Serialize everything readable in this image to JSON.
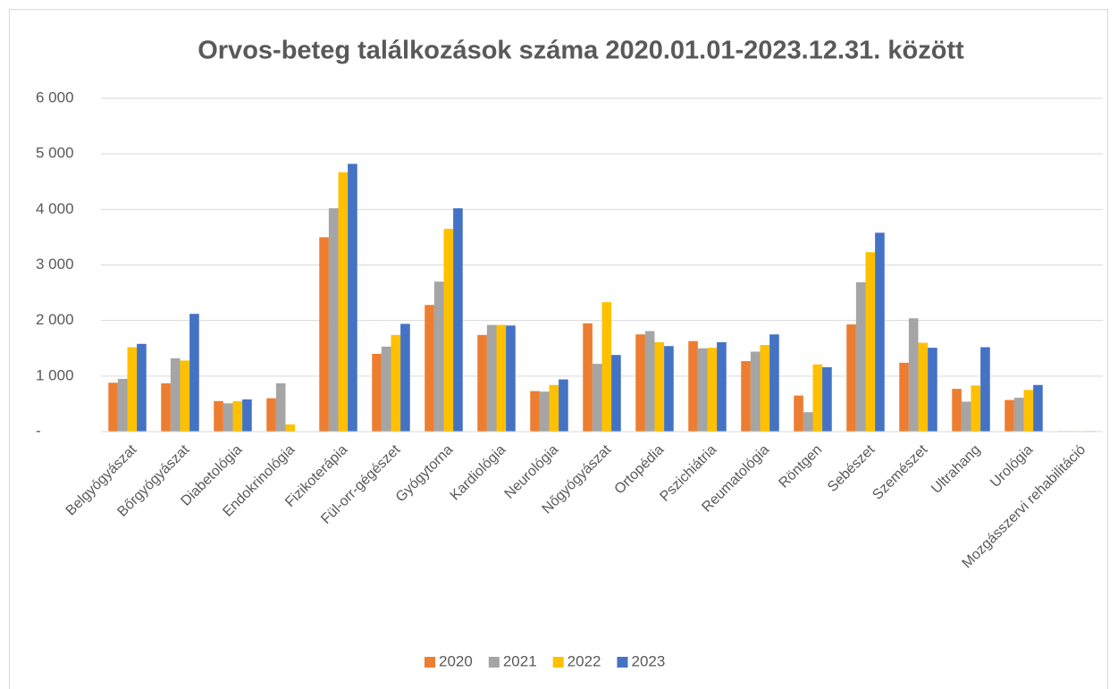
{
  "chart_data": {
    "type": "bar",
    "title": "Orvos-beteg találkozások száma 2020.01.01-2023.12.31. között",
    "categories": [
      "Belgyógyászat",
      "Bőrgyógyászat",
      "Diabetológia",
      "Endokrinológia",
      "Fizikoterápia",
      "Fül-orr-gégészet",
      "Gyógytorna",
      "Kardiológia",
      "Neurológia",
      "Nőgyógyászat",
      "Ortopédia",
      "Pszichiátria",
      "Reumatológia",
      "Röntgen",
      "Sebészet",
      "Szemészet",
      "Ultrahang",
      "Urológia",
      "Mozgásszervi rehabilitáció"
    ],
    "series": [
      {
        "name": "2020",
        "color": "#ed7d31",
        "values": [
          880,
          870,
          550,
          600,
          3500,
          1400,
          2280,
          1740,
          730,
          1950,
          1750,
          1630,
          1270,
          650,
          1930,
          1240,
          770,
          570,
          10
        ]
      },
      {
        "name": "2021",
        "color": "#a5a5a5",
        "values": [
          950,
          1320,
          510,
          870,
          4020,
          1530,
          2700,
          1920,
          720,
          1220,
          1810,
          1500,
          1440,
          350,
          2690,
          2040,
          540,
          610,
          10
        ]
      },
      {
        "name": "2022",
        "color": "#ffc000",
        "values": [
          1520,
          1280,
          550,
          130,
          4670,
          1740,
          3650,
          1920,
          840,
          2330,
          1610,
          1510,
          1560,
          1210,
          3230,
          1600,
          830,
          750,
          10
        ]
      },
      {
        "name": "2023",
        "color": "#4472c4",
        "values": [
          1580,
          2120,
          580,
          0,
          4820,
          1940,
          4020,
          1910,
          940,
          1380,
          1540,
          1610,
          1750,
          1160,
          3580,
          1510,
          1520,
          840,
          10
        ]
      }
    ],
    "ylim": [
      0,
      6000
    ],
    "yticks": [
      {
        "value": 0,
        "label": "-"
      },
      {
        "value": 1000,
        "label": "1 000"
      },
      {
        "value": 2000,
        "label": "2 000"
      },
      {
        "value": 3000,
        "label": "3 000"
      },
      {
        "value": 4000,
        "label": "4 000"
      },
      {
        "value": 5000,
        "label": "5 000"
      },
      {
        "value": 6000,
        "label": "6 000"
      }
    ],
    "grid": true,
    "legend": "bottom"
  }
}
